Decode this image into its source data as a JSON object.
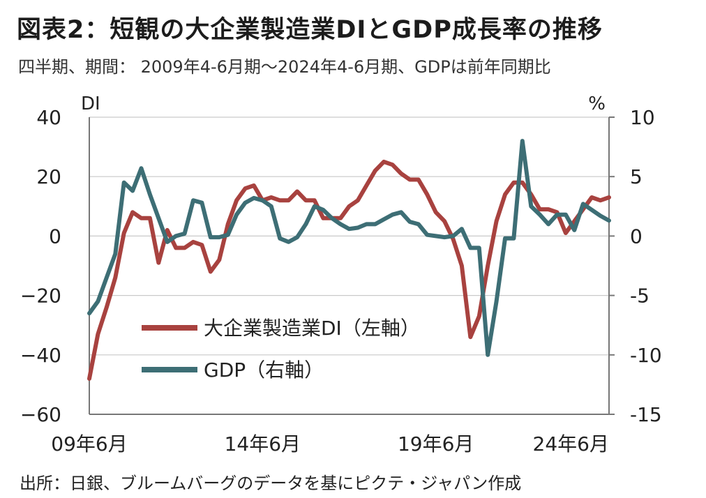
{
  "title": "図表2：短観の大企業製造業DIとGDP成長率の推移",
  "subtitle": "四半期、期間： 2009年4-6月期～2024年4-6月期、GDPは前年同期比",
  "source": "出所：日銀、ブルームバーグのデータを基にピクテ・ジャパン作成",
  "chart_data": {
    "type": "line",
    "x_start": "2009Q2",
    "x_end": "2024Q2",
    "x_ticks": [
      {
        "label": "09年6月",
        "index": 0
      },
      {
        "label": "14年6月",
        "index": 20
      },
      {
        "label": "19年6月",
        "index": 40
      },
      {
        "label": "24年6月",
        "index": 60
      }
    ],
    "y_left": {
      "label": "DI",
      "range": [
        -60,
        40
      ],
      "ticks": [
        40,
        20,
        0,
        -20,
        -40,
        -60
      ],
      "tick_labels": [
        "40",
        "20",
        "0",
        "−20",
        "−40",
        "−60"
      ]
    },
    "y_right": {
      "label": "%",
      "range": [
        -15,
        10
      ],
      "ticks": [
        10,
        5,
        0,
        -5,
        -10,
        -15
      ],
      "tick_labels": [
        "10",
        "5",
        "0",
        "-5",
        "-10",
        "-15"
      ]
    },
    "grid": true,
    "legend": "inside-bottom-left",
    "series": [
      {
        "name": "大企業製造業DI（左軸）",
        "axis": "left",
        "color": "#a8423f",
        "values": [
          -48,
          -33,
          -24,
          -14,
          1,
          8,
          6,
          6,
          -9,
          2,
          -4,
          -4,
          -2,
          -3,
          -12,
          -8,
          4,
          12,
          16,
          17,
          12,
          13,
          12,
          12,
          15,
          12,
          12,
          6,
          6,
          6,
          10,
          12,
          17,
          22,
          25,
          24,
          21,
          19,
          19,
          14,
          8,
          5,
          -1,
          -10,
          -34,
          -27,
          -10,
          5,
          14,
          18,
          18,
          14,
          9,
          9,
          8,
          1,
          5,
          9,
          13,
          12,
          13
        ]
      },
      {
        "name": "GDP（右軸）",
        "axis": "right",
        "color": "#3d6e75",
        "values": [
          -6.5,
          -5.5,
          -3.5,
          -1.5,
          4.5,
          3.8,
          5.7,
          3.5,
          1.5,
          -0.5,
          0,
          0.2,
          3,
          2.8,
          -0.1,
          -0.1,
          0.1,
          1.8,
          2.8,
          3.2,
          3,
          2.5,
          -0.2,
          -0.5,
          -0.1,
          1,
          2.5,
          2.2,
          1.5,
          1,
          0.6,
          0.7,
          1,
          1,
          1.4,
          1.8,
          2,
          1.2,
          1,
          0.1,
          0,
          -0.1,
          0,
          0.6,
          -1,
          -1,
          -10,
          -5.5,
          -0.2,
          -0.2,
          8,
          2.5,
          1.8,
          1,
          1.8,
          1.8,
          0.5,
          2.7,
          2.2,
          1.7,
          1.3
        ]
      }
    ]
  }
}
